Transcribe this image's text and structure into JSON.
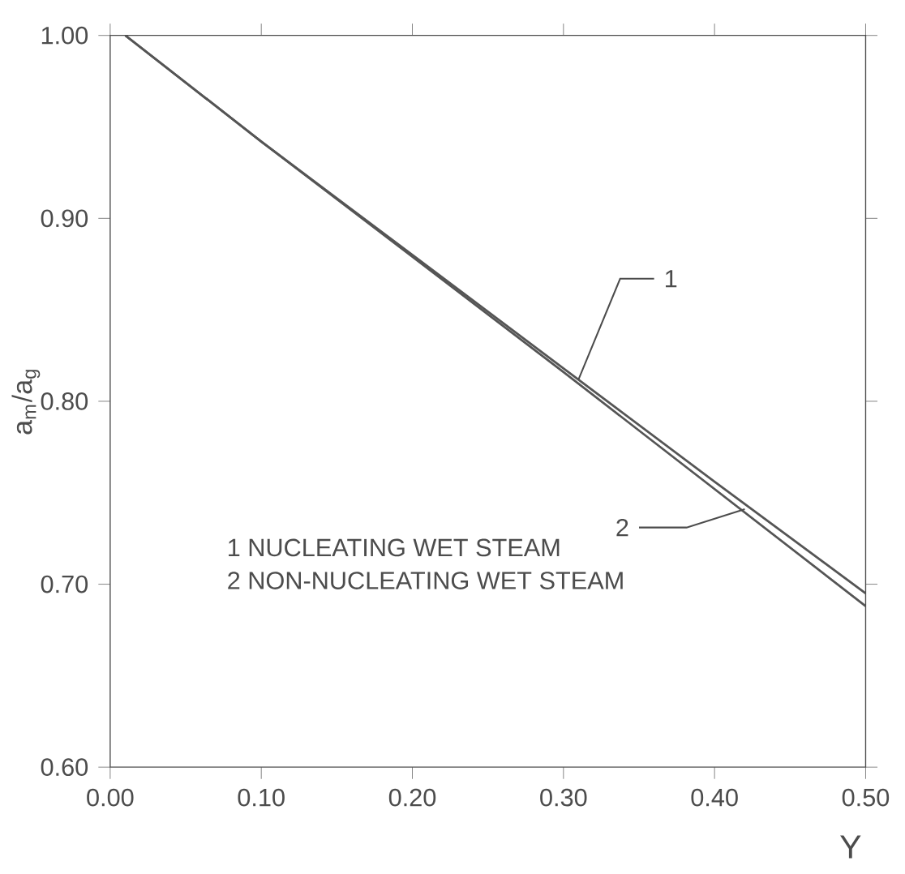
{
  "chart_data": {
    "type": "line",
    "xlabel": "Y",
    "ylabel": "a$_{m}$/a$_{g}$",
    "xlim": [
      0,
      0.5
    ],
    "ylim": [
      0.6,
      1.0
    ],
    "xticks": [
      {
        "value": 0,
        "label": "0.00"
      },
      {
        "value": 0.1,
        "label": "0.10"
      },
      {
        "value": 0.2,
        "label": "0.20"
      },
      {
        "value": 0.3,
        "label": "0.30"
      },
      {
        "value": 0.4,
        "label": "0.40"
      },
      {
        "value": 0.5,
        "label": "0.50"
      }
    ],
    "yticks": [
      {
        "value": 0.6,
        "label": "0.60"
      },
      {
        "value": 0.7,
        "label": "0.70"
      },
      {
        "value": 0.8,
        "label": "0.80"
      },
      {
        "value": 0.9,
        "label": "0.90"
      },
      {
        "value": 1.0,
        "label": "1.00"
      }
    ],
    "grid": false,
    "marker": "none",
    "line_style": "solid",
    "series": [
      {
        "color": "#555555",
        "x": [
          0.01,
          0.1,
          0.2,
          0.3,
          0.4,
          0.5
        ],
        "values": [
          1.0,
          0.942,
          0.88,
          0.818,
          0.756,
          0.695
        ]
      },
      {
        "color": "#555555",
        "x": [
          0.01,
          0.1,
          0.2,
          0.3,
          0.4,
          0.5
        ],
        "values": [
          1.0,
          0.942,
          0.879,
          0.816,
          0.752,
          0.688
        ]
      }
    ],
    "annotations": [
      {
        "text": "1",
        "x": 0.31,
        "y": 0.812
      },
      {
        "text": "2",
        "x": 0.42,
        "y": 0.741
      },
      "1  NUCLEATING WET STEAM",
      "2  NON-NUCLEATING WET STEAM"
    ]
  }
}
